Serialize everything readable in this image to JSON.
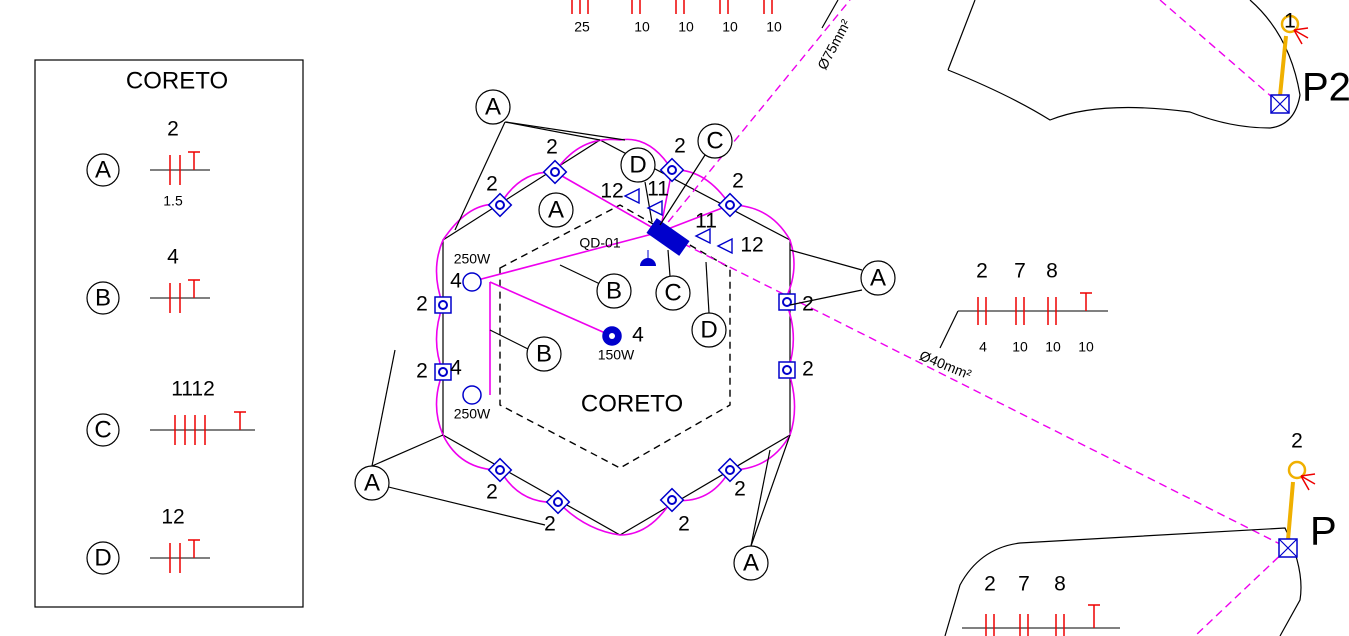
{
  "legend": {
    "title": "CORETO",
    "items": [
      {
        "symbol": "A",
        "count": "2",
        "size": "1.5"
      },
      {
        "symbol": "B",
        "count": "4"
      },
      {
        "symbol": "C",
        "count": "1112"
      },
      {
        "symbol": "D",
        "count": "12"
      }
    ]
  },
  "drawing": {
    "area_label": "CORETO",
    "panel": "QD-01",
    "circuit_tags": [
      "A",
      "A",
      "A",
      "A",
      "A",
      "B",
      "B",
      "C",
      "C",
      "D",
      "D"
    ],
    "fixture_labels": [
      "2",
      "2",
      "2",
      "2",
      "2",
      "2",
      "2",
      "2",
      "2",
      "2",
      "2",
      "2"
    ],
    "circuit_numbers": [
      "12",
      "11",
      "11",
      "12"
    ],
    "lamps": [
      {
        "circuit": "4",
        "power": "250W"
      },
      {
        "circuit": "4",
        "power": "150W"
      },
      {
        "circuit": "4",
        "power": "250W"
      }
    ],
    "top_conduit": {
      "counts": [
        "25",
        "10",
        "10",
        "10",
        "10"
      ],
      "diameter": "Ø75mm²"
    },
    "right_conduit": {
      "circuits": [
        "2",
        "7",
        "8"
      ],
      "sizes": [
        "4",
        "10",
        "10",
        "10"
      ],
      "diameter": "Ø40mm²"
    },
    "bottom_conduit": {
      "circuits": [
        "2",
        "7",
        "8"
      ]
    },
    "poles": [
      {
        "label": "P2",
        "count": "1"
      },
      {
        "label": "P",
        "count": "2"
      }
    ]
  }
}
